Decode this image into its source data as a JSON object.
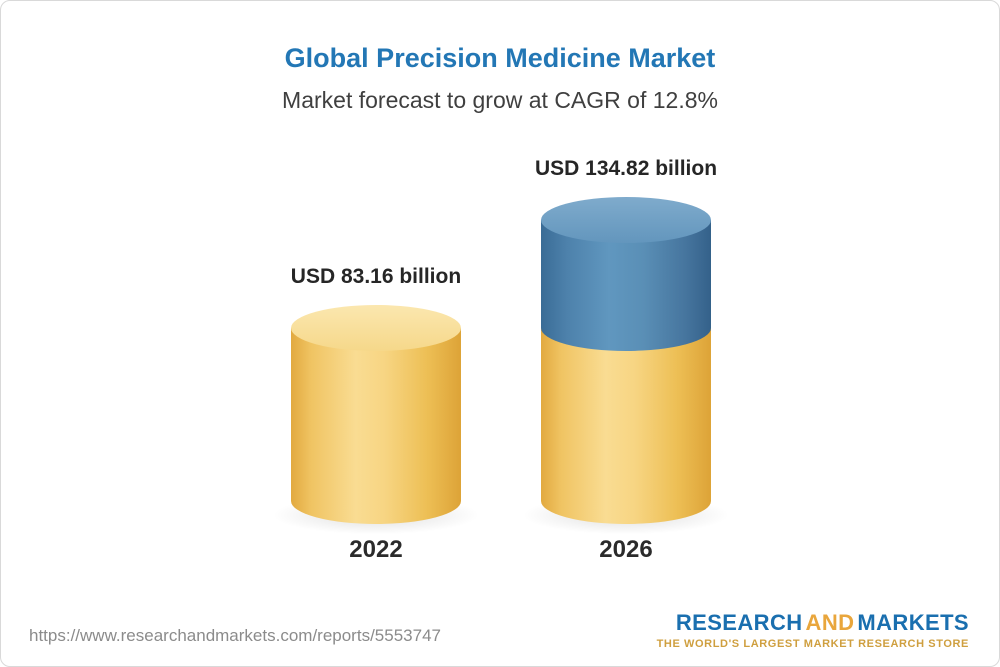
{
  "canvas": {
    "background": "#ffffff",
    "border_color": "#d9d9d9"
  },
  "header": {
    "title": "Global Precision Medicine Market",
    "subtitle": "Market forecast to grow at CAGR of 12.8%",
    "title_color": "#2377b5",
    "subtitle_color": "#3f3f3f"
  },
  "chart_data": {
    "type": "bar",
    "style": "3d-cylinder",
    "title": "Global Precision Medicine Market",
    "subtitle": "Market forecast to grow at CAGR of 12.8%",
    "cagr_percent": 12.8,
    "unit": "USD billion",
    "categories": [
      "2022",
      "2026"
    ],
    "values": [
      83.16,
      134.82
    ],
    "value_labels": [
      "USD 83.16 billion",
      "USD 134.82 billion"
    ],
    "legend": "none",
    "grid": false,
    "axes_shown": false,
    "bars": [
      {
        "category": "2022",
        "value": 83.16,
        "segments": [
          {
            "name": "base",
            "value": 83.16,
            "color": "#f3cb66"
          }
        ]
      },
      {
        "category": "2026",
        "value": 134.82,
        "segments": [
          {
            "name": "base",
            "value": 83.16,
            "color": "#f3cb66"
          },
          {
            "name": "growth",
            "value": 51.66,
            "color": "#4c80aa"
          }
        ]
      }
    ],
    "colors": {
      "yellow_body": "#f3cb66",
      "yellow_top": "#f9e2a4",
      "blue_body": "#4c80aa",
      "blue_top": "#72a2c6",
      "label_text": "#262626"
    }
  },
  "footer": {
    "url": "https://www.researchandmarkets.com/reports/5553747",
    "logo": {
      "part1": "RESEARCH",
      "part2": "AND",
      "part3": "MARKETS",
      "tagline": "THE WORLD'S LARGEST MARKET RESEARCH STORE",
      "blue": "#1a6faf",
      "gold": "#e9a63c"
    }
  }
}
